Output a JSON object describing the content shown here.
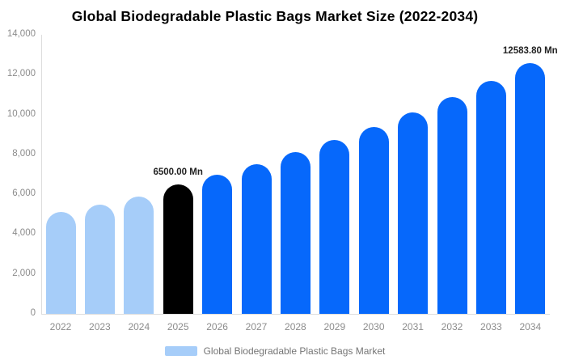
{
  "title": "Global Biodegradable Plastic Bags Market Size (2022-2034)",
  "colors": {
    "bar_light_blue": "#a6cdf9",
    "bar_blue": "#0668fb",
    "bar_highlight_black": "#000000",
    "axis_line": "#dddddd",
    "tick_text": "#8c8c8c",
    "legend_text": "#757575"
  },
  "legend": {
    "label": "Global Biodegradable Plastic Bags Market",
    "swatch_color": "#a6cdf9"
  },
  "chart_data": {
    "type": "bar",
    "title": "Global Biodegradable Plastic Bags Market Size (2022-2034)",
    "xlabel": "",
    "ylabel": "",
    "categories": [
      "2022",
      "2023",
      "2024",
      "2025",
      "2026",
      "2027",
      "2028",
      "2029",
      "2030",
      "2031",
      "2032",
      "2033",
      "2034"
    ],
    "values": [
      5100,
      5480,
      5900,
      6500,
      6995,
      7528,
      8101,
      8718,
      9382,
      10097,
      10866,
      11694,
      12583.8
    ],
    "bar_colors": [
      "#a6cdf9",
      "#a6cdf9",
      "#a6cdf9",
      "#000000",
      "#0668fb",
      "#0668fb",
      "#0668fb",
      "#0668fb",
      "#0668fb",
      "#0668fb",
      "#0668fb",
      "#0668fb",
      "#0668fb"
    ],
    "data_labels": [
      {
        "index": 3,
        "text": "6500.00 Mn"
      },
      {
        "index": 12,
        "text": "12583.80 Mn"
      }
    ],
    "ylim": [
      0,
      14000
    ],
    "ytick_step": 2000,
    "ytick_labels": [
      "0",
      "2,000",
      "4,000",
      "6,000",
      "8,000",
      "10,000",
      "12,000",
      "14,000"
    ],
    "grid": false,
    "legend_position": "bottom",
    "series_name": "Global Biodegradable Plastic Bags Market"
  }
}
